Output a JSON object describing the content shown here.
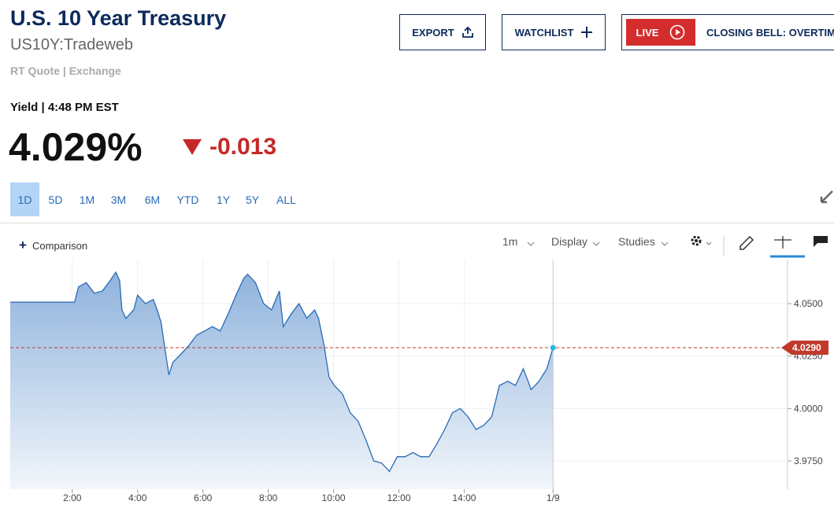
{
  "header": {
    "title": "U.S. 10 Year Treasury",
    "symbol": "US10Y:Tradeweb",
    "source": "RT Quote | Exchange",
    "yield_time": "Yield | 4:48 PM EST",
    "price": "4.029%",
    "change": "-0.013"
  },
  "buttons": {
    "export": "EXPORT",
    "watchlist": "WATCHLIST",
    "live": "LIVE",
    "show": "CLOSING BELL: OVERTIME"
  },
  "ranges": [
    "1D",
    "5D",
    "1M",
    "3M",
    "6M",
    "YTD",
    "1Y",
    "5Y",
    "ALL"
  ],
  "toolbar": {
    "comparison": "Comparison",
    "interval": "1m",
    "display": "Display",
    "studies": "Studies"
  },
  "chart_data": {
    "type": "area",
    "color": "#2a6ab5",
    "grid": true,
    "x": [
      0.1,
      2.07,
      2.19,
      2.43,
      2.67,
      2.92,
      3.16,
      3.33,
      3.45,
      3.52,
      3.64,
      3.88,
      4.0,
      4.24,
      4.48,
      4.6,
      4.72,
      4.84,
      4.96,
      5.08,
      5.33,
      5.57,
      5.81,
      6.05,
      6.29,
      6.53,
      6.77,
      7.01,
      7.25,
      7.37,
      7.61,
      7.86,
      8.1,
      8.34,
      8.46,
      8.7,
      8.94,
      9.18,
      9.42,
      9.54,
      9.71,
      9.86,
      10.02,
      10.27,
      10.51,
      10.75,
      10.99,
      11.23,
      11.47,
      11.71,
      11.95,
      12.19,
      12.43,
      12.67,
      12.92,
      13.16,
      13.4,
      13.64,
      13.88,
      14.12,
      14.36,
      14.6,
      14.84,
      15.08,
      15.33,
      15.57,
      15.81,
      16.05,
      16.29,
      16.53,
      16.72
    ],
    "values": [
      4.0507,
      4.0507,
      4.058,
      4.06,
      4.055,
      4.056,
      4.061,
      4.065,
      4.061,
      4.047,
      4.043,
      4.047,
      4.054,
      4.05,
      4.052,
      4.047,
      4.041,
      4.028,
      4.016,
      4.022,
      4.026,
      4.03,
      4.035,
      4.037,
      4.039,
      4.037,
      4.045,
      4.054,
      4.062,
      4.064,
      4.06,
      4.05,
      4.047,
      4.056,
      4.039,
      4.045,
      4.05,
      4.043,
      4.047,
      4.043,
      4.03,
      4.015,
      4.011,
      4.007,
      3.998,
      3.994,
      3.985,
      3.975,
      3.974,
      3.97,
      3.977,
      3.977,
      3.979,
      3.977,
      3.977,
      3.983,
      3.99,
      3.998,
      4.0,
      3.996,
      3.99,
      3.992,
      3.996,
      4.011,
      4.013,
      4.011,
      4.019,
      4.009,
      4.013,
      4.019,
      4.029
    ],
    "xlim": [
      0.1,
      23.9
    ],
    "ylim": [
      3.9615,
      4.071
    ],
    "xticks": [
      {
        "value": 2,
        "label": "2:00"
      },
      {
        "value": 4,
        "label": "4:00"
      },
      {
        "value": 6,
        "label": "6:00"
      },
      {
        "value": 8,
        "label": "8:00"
      },
      {
        "value": 10,
        "label": "10:00"
      },
      {
        "value": 12,
        "label": "12:00"
      },
      {
        "value": 14,
        "label": "14:00"
      },
      {
        "value": 16.72,
        "label": "1/9"
      }
    ],
    "yticks": [
      {
        "value": 3.975,
        "label": "3.9750"
      },
      {
        "value": 4.0,
        "label": "4.0000"
      },
      {
        "value": 4.025,
        "label": "4.0250"
      },
      {
        "value": 4.05,
        "label": "4.0500"
      }
    ],
    "reference_line": {
      "value": 4.029,
      "label": "4.0290",
      "color": "#c0392b"
    }
  }
}
